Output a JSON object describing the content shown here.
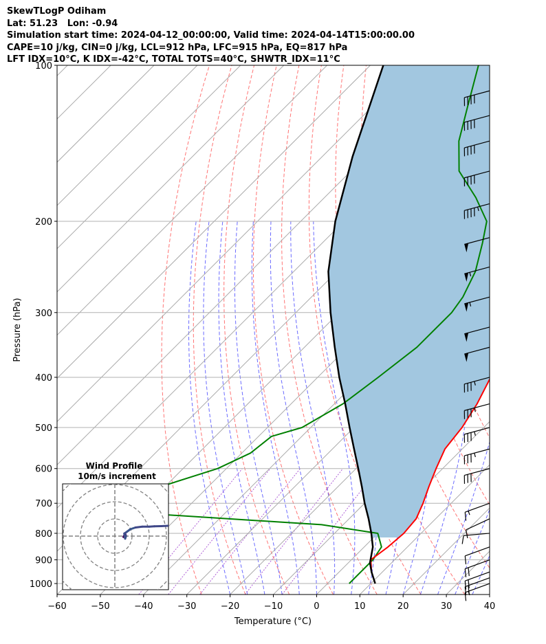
{
  "header": {
    "line1": "SkewTLogP Odiham",
    "line2": "Lat: 51.23   Lon: -0.94",
    "line3": "Simulation start time: 2024-04-12_00:00:00, Valid time: 2024-04-14T15:00:00.00",
    "line4": "CAPE=10 j/kg, CIN=0 j/kg, LCL=912 hPa, LFC=915 hPa, EQ=817 hPa",
    "line5": "LFT IDX=10°C, K IDX=-42°C, TOTAL TOTS=40°C, SHWTR_IDX=11°C"
  },
  "chart_data": {
    "type": "skewt",
    "xlabel": "Temperature (°C)",
    "ylabel": "Pressure (hPa)",
    "xlim": [
      -60,
      40
    ],
    "ylim": [
      1050,
      100
    ],
    "x_ticks": [
      -60,
      -50,
      -40,
      -30,
      -20,
      -10,
      0,
      10,
      20,
      30,
      40
    ],
    "x_tick_labels": [
      "−60",
      "−50",
      "−40",
      "−30",
      "−20",
      "−10",
      "0",
      "10",
      "20",
      "30",
      "40"
    ],
    "y_ticks": [
      1000,
      900,
      800,
      700,
      600,
      500,
      400,
      300,
      200,
      100
    ],
    "y_tick_labels": [
      "1000",
      "900",
      "800",
      "700",
      "600",
      "500",
      "400",
      "300",
      "200",
      "100"
    ],
    "temperature": {
      "color": "#ff0000",
      "p": [
        1000,
        950,
        900,
        850,
        800,
        750,
        700,
        650,
        600,
        550,
        500,
        450,
        400,
        350,
        320,
        300,
        280,
        260,
        240,
        220,
        200,
        180,
        160,
        140,
        120,
        100
      ],
      "t": [
        11,
        7.5,
        4.5,
        5.5,
        6,
        5.5,
        3.5,
        1,
        -1.5,
        -4,
        -5,
        -7,
        -10,
        -13,
        -15.5,
        -18,
        -21,
        -25,
        -29,
        -33,
        -39,
        -45,
        -50,
        -55,
        -61,
        -69
      ]
    },
    "dewpoint": {
      "color": "#008000",
      "p": [
        1000,
        950,
        900,
        850,
        800,
        770,
        750,
        730,
        700,
        650,
        600,
        560,
        520,
        500,
        450,
        400,
        350,
        300,
        280,
        250,
        220,
        200,
        180,
        160,
        140,
        120,
        100
      ],
      "t": [
        5,
        5,
        5,
        4,
        0,
        -15,
        -38,
        -61,
        -75,
        -61,
        -52,
        -48,
        -47,
        -42,
        -38,
        -36,
        -34,
        -34,
        -35,
        -38,
        -43,
        -47,
        -55,
        -65,
        -72,
        -78,
        -85
      ]
    },
    "parcel": {
      "color": "#000000",
      "p": [
        1000,
        950,
        912,
        850,
        800,
        750,
        700,
        650,
        600,
        550,
        500,
        450,
        400,
        350,
        300,
        250,
        200,
        150,
        100
      ],
      "t": [
        11,
        7.5,
        5,
        2,
        -1.5,
        -5.5,
        -10,
        -14.5,
        -19.5,
        -25,
        -31,
        -37.5,
        -45,
        -53,
        -62,
        -72,
        -82,
        -93,
        -107
      ]
    },
    "cape_fill_color": "#a2c7e0",
    "wind_barbs": [
      {
        "p": 1000,
        "dir": 250,
        "kt": 15
      },
      {
        "p": 975,
        "dir": 250,
        "kt": 20
      },
      {
        "p": 950,
        "dir": 250,
        "kt": 20
      },
      {
        "p": 900,
        "dir": 250,
        "kt": 20
      },
      {
        "p": 850,
        "dir": 250,
        "kt": 10
      },
      {
        "p": 800,
        "dir": 265,
        "kt": 10
      },
      {
        "p": 750,
        "dir": 245,
        "kt": 10
      },
      {
        "p": 700,
        "dir": 250,
        "kt": 15
      },
      {
        "p": 600,
        "dir": 255,
        "kt": 30
      },
      {
        "p": 550,
        "dir": 255,
        "kt": 35
      },
      {
        "p": 500,
        "dir": 255,
        "kt": 35
      },
      {
        "p": 450,
        "dir": 255,
        "kt": 35
      },
      {
        "p": 400,
        "dir": 255,
        "kt": 35
      },
      {
        "p": 350,
        "dir": 255,
        "kt": 50
      },
      {
        "p": 320,
        "dir": 255,
        "kt": 50
      },
      {
        "p": 280,
        "dir": 255,
        "kt": 55
      },
      {
        "p": 245,
        "dir": 255,
        "kt": 55
      },
      {
        "p": 215,
        "dir": 255,
        "kt": 50
      },
      {
        "p": 185,
        "dir": 255,
        "kt": 45
      },
      {
        "p": 160,
        "dir": 255,
        "kt": 40
      },
      {
        "p": 140,
        "dir": 255,
        "kt": 40
      },
      {
        "p": 125,
        "dir": 255,
        "kt": 40
      },
      {
        "p": 112,
        "dir": 255,
        "kt": 40
      }
    ],
    "hodograph": {
      "title": "Wind Profile",
      "subtitle": "10m/s increment",
      "ring_step_ms": 10,
      "u": [
        5,
        6,
        6.5,
        6,
        5.5,
        7,
        9,
        12,
        16,
        20,
        23,
        27,
        31
      ],
      "v": [
        -0.5,
        1.5,
        0,
        -1.5,
        1.5,
        2.5,
        4,
        5,
        5.5,
        5.5,
        5.7,
        5.8,
        6
      ]
    }
  }
}
